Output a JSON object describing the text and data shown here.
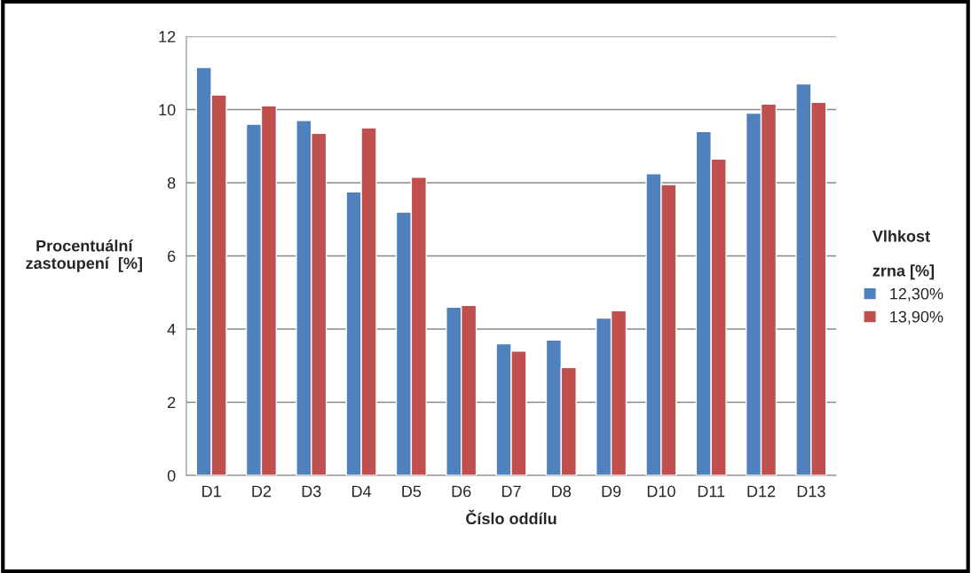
{
  "chart_data": {
    "type": "bar",
    "xlabel": "Číslo oddílu",
    "ylabel": "Procentuální\nzastoupení  [%]",
    "legend_title": "Vlhkost\n\nzrna [%]",
    "categories": [
      "D1",
      "D2",
      "D3",
      "D4",
      "D5",
      "D6",
      "D7",
      "D8",
      "D9",
      "D10",
      "D11",
      "D12",
      "D13"
    ],
    "series": [
      {
        "name": "12,30%",
        "color": "#4f81bd",
        "values": [
          11.15,
          9.6,
          9.7,
          7.75,
          7.2,
          4.6,
          3.6,
          3.7,
          4.3,
          8.25,
          9.4,
          9.9,
          10.7
        ]
      },
      {
        "name": "13,90%",
        "color": "#c0504d",
        "values": [
          10.4,
          10.1,
          9.35,
          9.5,
          8.15,
          4.65,
          3.4,
          2.95,
          4.5,
          7.95,
          8.65,
          10.15,
          10.2
        ]
      }
    ],
    "ylim": [
      0,
      12
    ],
    "yticks": [
      0,
      2,
      4,
      6,
      8,
      10,
      12
    ],
    "grid": "y",
    "legend": "right"
  }
}
